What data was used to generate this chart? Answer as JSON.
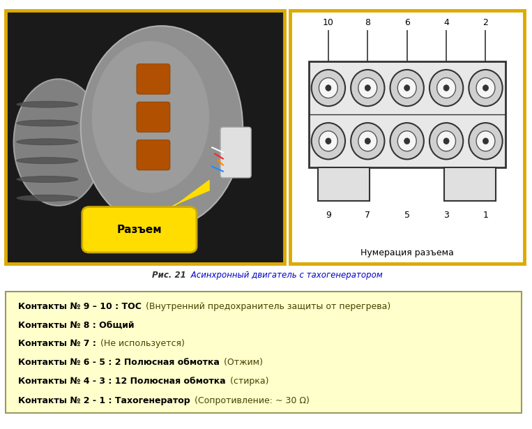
{
  "fig_width": 7.63,
  "fig_height": 6.15,
  "bg_color": "#ffffff",
  "caption_bold": "Рис. 21",
  "caption_italic": " Асинхронный двигатель с тахогенератором",
  "caption_bold_color": "#333333",
  "caption_italic_color": "#0000cc",
  "info_box_bg": "#ffffcc",
  "info_box_border": "#999966",
  "info_lines": [
    {
      "bold": "Контакты № 9 – 10 : ТОС",
      "normal": " (Внутренний предохранитель защиты от перегрева)"
    },
    {
      "bold": "Контакты № 8 : Общий",
      "normal": ""
    },
    {
      "bold": "Контакты № 7 :",
      "normal": " (Не используется)"
    },
    {
      "bold": "Контакты № 6 - 5 : 2 Полюсная обмотка",
      "normal": " (Отжим)"
    },
    {
      "bold": "Контакты № 4 - 3 : 12 Полюсная обмотка",
      "normal": " (стирка)"
    },
    {
      "bold": "Контакты № 2 - 1 : Тахогенератор",
      "normal": " (Сопротивление: ~ 30 Ω)"
    }
  ],
  "connector_label": "Разъем",
  "numbering_label": "Нумерация разъема",
  "top_numbers": [
    "10",
    "8",
    "6",
    "4",
    "2"
  ],
  "bottom_numbers": [
    "9",
    "7",
    "5",
    "3",
    "1"
  ],
  "photo_border_color": "#ddaa00",
  "diag_border_color": "#ddaa00",
  "footer_color": "#ddaa00",
  "bold_color": "#000000",
  "normal_color": "#444400",
  "photo_bg": "#1a1a1a",
  "diag_bg": "#ffffff"
}
